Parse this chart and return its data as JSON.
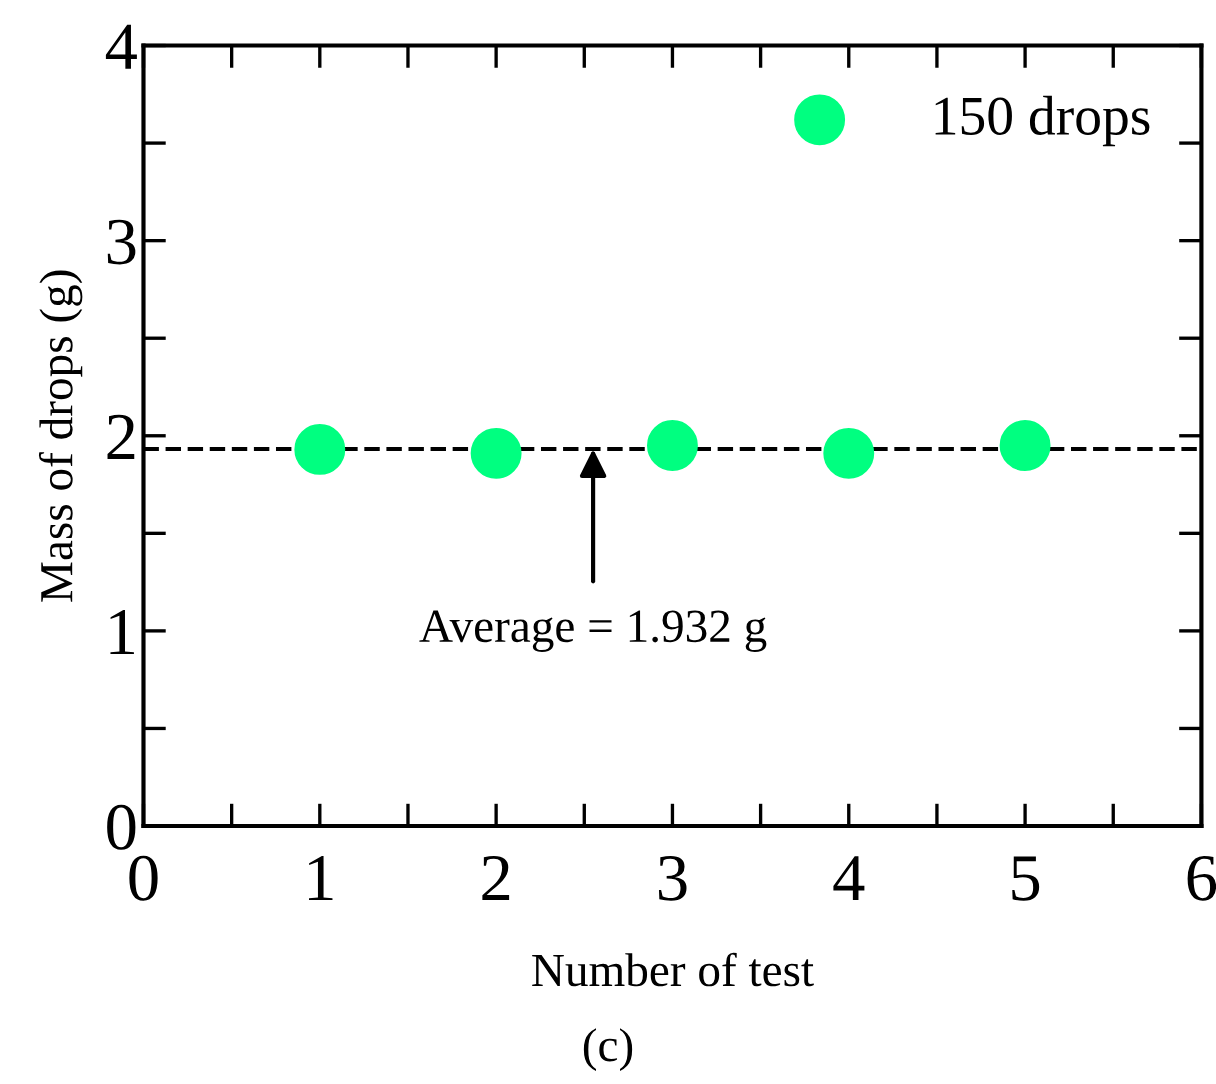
{
  "chart_data": {
    "type": "scatter",
    "xlabel": "Number of test",
    "ylabel": "Mass of drops (g)",
    "x": [
      1,
      2,
      3,
      4,
      5
    ],
    "series": [
      {
        "name": "150 drops",
        "color": "#00ff80",
        "values": [
          1.93,
          1.91,
          1.95,
          1.91,
          1.95
        ]
      }
    ],
    "xlim": [
      0,
      6
    ],
    "ylim": [
      0,
      4
    ],
    "xticks": [
      0,
      {
        "value": 0.5,
        "label": null
      },
      1,
      {
        "value": 1.5,
        "label": null
      },
      2,
      {
        "value": 2.5,
        "label": null
      },
      3,
      {
        "value": 3.5,
        "label": null
      },
      4,
      {
        "value": 4.5,
        "label": null
      },
      5,
      {
        "value": 5.5,
        "label": null
      },
      6
    ],
    "yticks": [
      0,
      {
        "value": 0.5,
        "label": null
      },
      1,
      {
        "value": 1.5,
        "label": null
      },
      2,
      {
        "value": 2.5,
        "label": null
      },
      3,
      {
        "value": 3.5,
        "label": null
      },
      4
    ],
    "ref_lines": [
      {
        "axis": "y",
        "value": 1.932,
        "color": "#000000",
        "line_style": "dashed"
      }
    ],
    "annotations": [
      {
        "text": "Average = 1.932 g",
        "x": 2.55,
        "y": 1.932
      },
      "(c)"
    ],
    "marker": "circle",
    "grid": false,
    "legend": "top right"
  }
}
